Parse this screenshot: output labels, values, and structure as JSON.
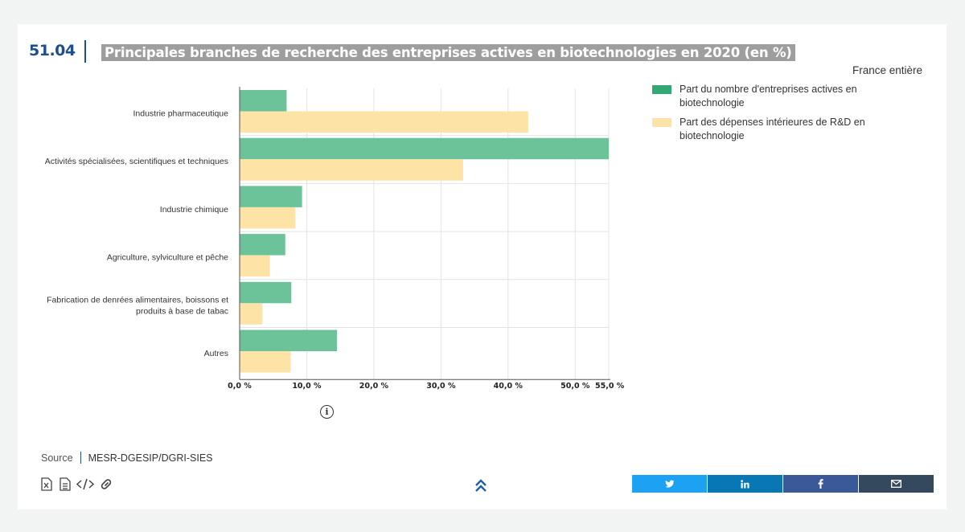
{
  "header": {
    "figure_number": "51.04",
    "title": "Principales branches de recherche des entreprises actives en biotechnologies en 2020 (en %)",
    "scope": "France entière"
  },
  "chart_data": {
    "type": "bar",
    "orientation": "horizontal",
    "title": "Principales branches de recherche des entreprises actives en biotechnologies en 2020 (en %)",
    "categories": [
      "Industrie pharmaceutique",
      "Activités spécialisées, scientifiques et techniques",
      "Industrie chimique",
      "Agriculture, sylviculture et pêche",
      "Fabrication de denrées alimentaires, boissons et produits à base de tabac",
      "Autres"
    ],
    "category_lines": [
      [
        "Industrie pharmaceutique"
      ],
      [
        "Activités spécialisées, scientifiques et techniques"
      ],
      [
        "Industrie chimique"
      ],
      [
        "Agriculture, sylviculture et pêche"
      ],
      [
        "Fabrication de denrées alimentaires, boissons et",
        "produits à base de tabac"
      ],
      [
        "Autres"
      ]
    ],
    "series": [
      {
        "name": "Part du nombre d'entreprises actives en biotechnologie",
        "color": "#6cc39a",
        "values": [
          7.0,
          55.0,
          9.3,
          6.8,
          7.7,
          14.5
        ]
      },
      {
        "name": "Part des dépenses intérieures de R&D en biotechnologie",
        "color": "#fde4a6",
        "values": [
          43.0,
          33.3,
          8.3,
          4.5,
          3.4,
          7.6
        ]
      }
    ],
    "xlim": [
      0,
      55
    ],
    "ticks": [
      0,
      10,
      20,
      30,
      40,
      50,
      55
    ],
    "tick_labels": [
      "0,0 %",
      "10,0 %",
      "20,0 %",
      "30,0 %",
      "40,0 %",
      "50,0 %",
      "55,0 %"
    ],
    "grid": true,
    "legend_position": "right"
  },
  "legend": {
    "items": [
      {
        "label": "Part du nombre d'entreprises actives en biotechnologie",
        "color": "#34a874"
      },
      {
        "label": "Part des dépenses intérieures de R&D en biotechnologie",
        "color": "#fde4a6"
      }
    ]
  },
  "source": {
    "label": "Source",
    "value": "MESR-DGESIP/DGRI-SIES"
  },
  "tools": [
    "excel-icon",
    "document-icon",
    "code-icon",
    "link-icon"
  ],
  "share": [
    {
      "name": "twitter",
      "color": "#1da1f2"
    },
    {
      "name": "linkedin",
      "color": "#0a77b5"
    },
    {
      "name": "facebook",
      "color": "#3b5998"
    },
    {
      "name": "email",
      "color": "#34495e"
    }
  ]
}
